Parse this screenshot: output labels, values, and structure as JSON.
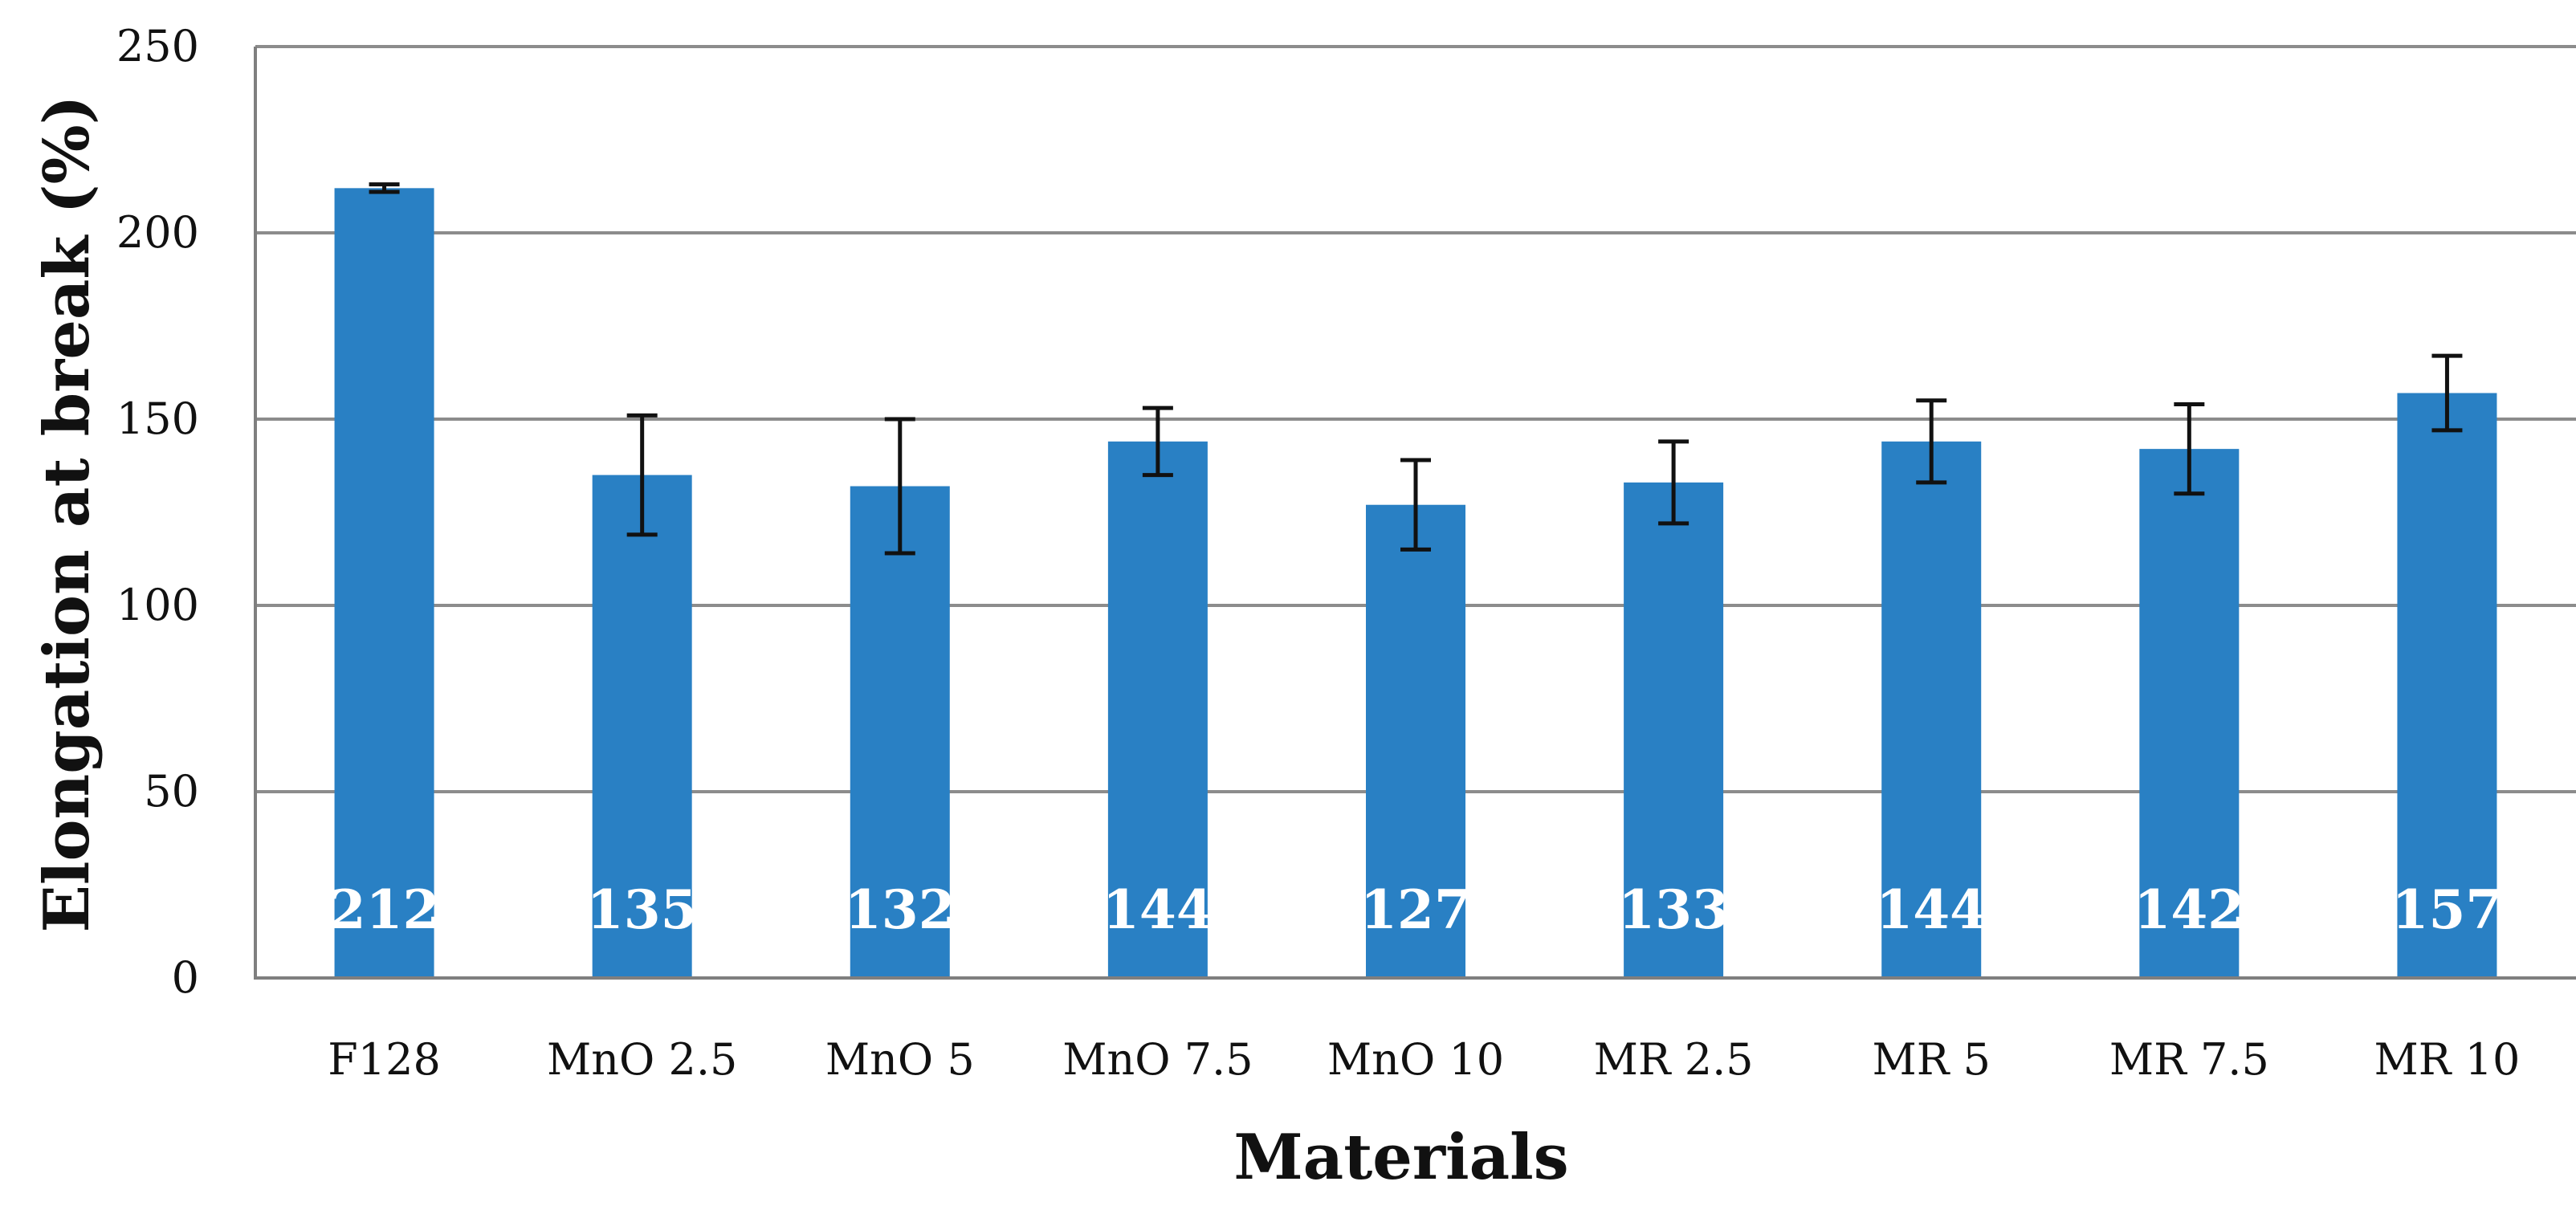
{
  "chart_data": {
    "type": "bar",
    "title": "",
    "xlabel": "Materials",
    "ylabel": "Elongation at break (%)",
    "ylim": [
      0,
      250
    ],
    "yticks": [
      0,
      50,
      100,
      150,
      200,
      250
    ],
    "grid": true,
    "legend": "none",
    "categories": [
      "F128",
      "MnO 2.5",
      "MnO 5",
      "MnO 7.5",
      "MnO 10",
      "MR 2.5",
      "MR 5",
      "MR 7.5",
      "MR 10"
    ],
    "values": [
      212,
      135,
      132,
      144,
      127,
      133,
      144,
      142,
      157
    ],
    "error": [
      1,
      16,
      18,
      9,
      12,
      11,
      11,
      12,
      10
    ],
    "data_labels": [
      "212",
      "135",
      "132",
      "144",
      "127",
      "133",
      "144",
      "142",
      "157"
    ],
    "colors": {
      "bar": "#2980c4",
      "grid": "#8c8c8c",
      "axis": "#7f7f7f",
      "error_bar": "#111111",
      "data_label": "#ffffff"
    }
  }
}
